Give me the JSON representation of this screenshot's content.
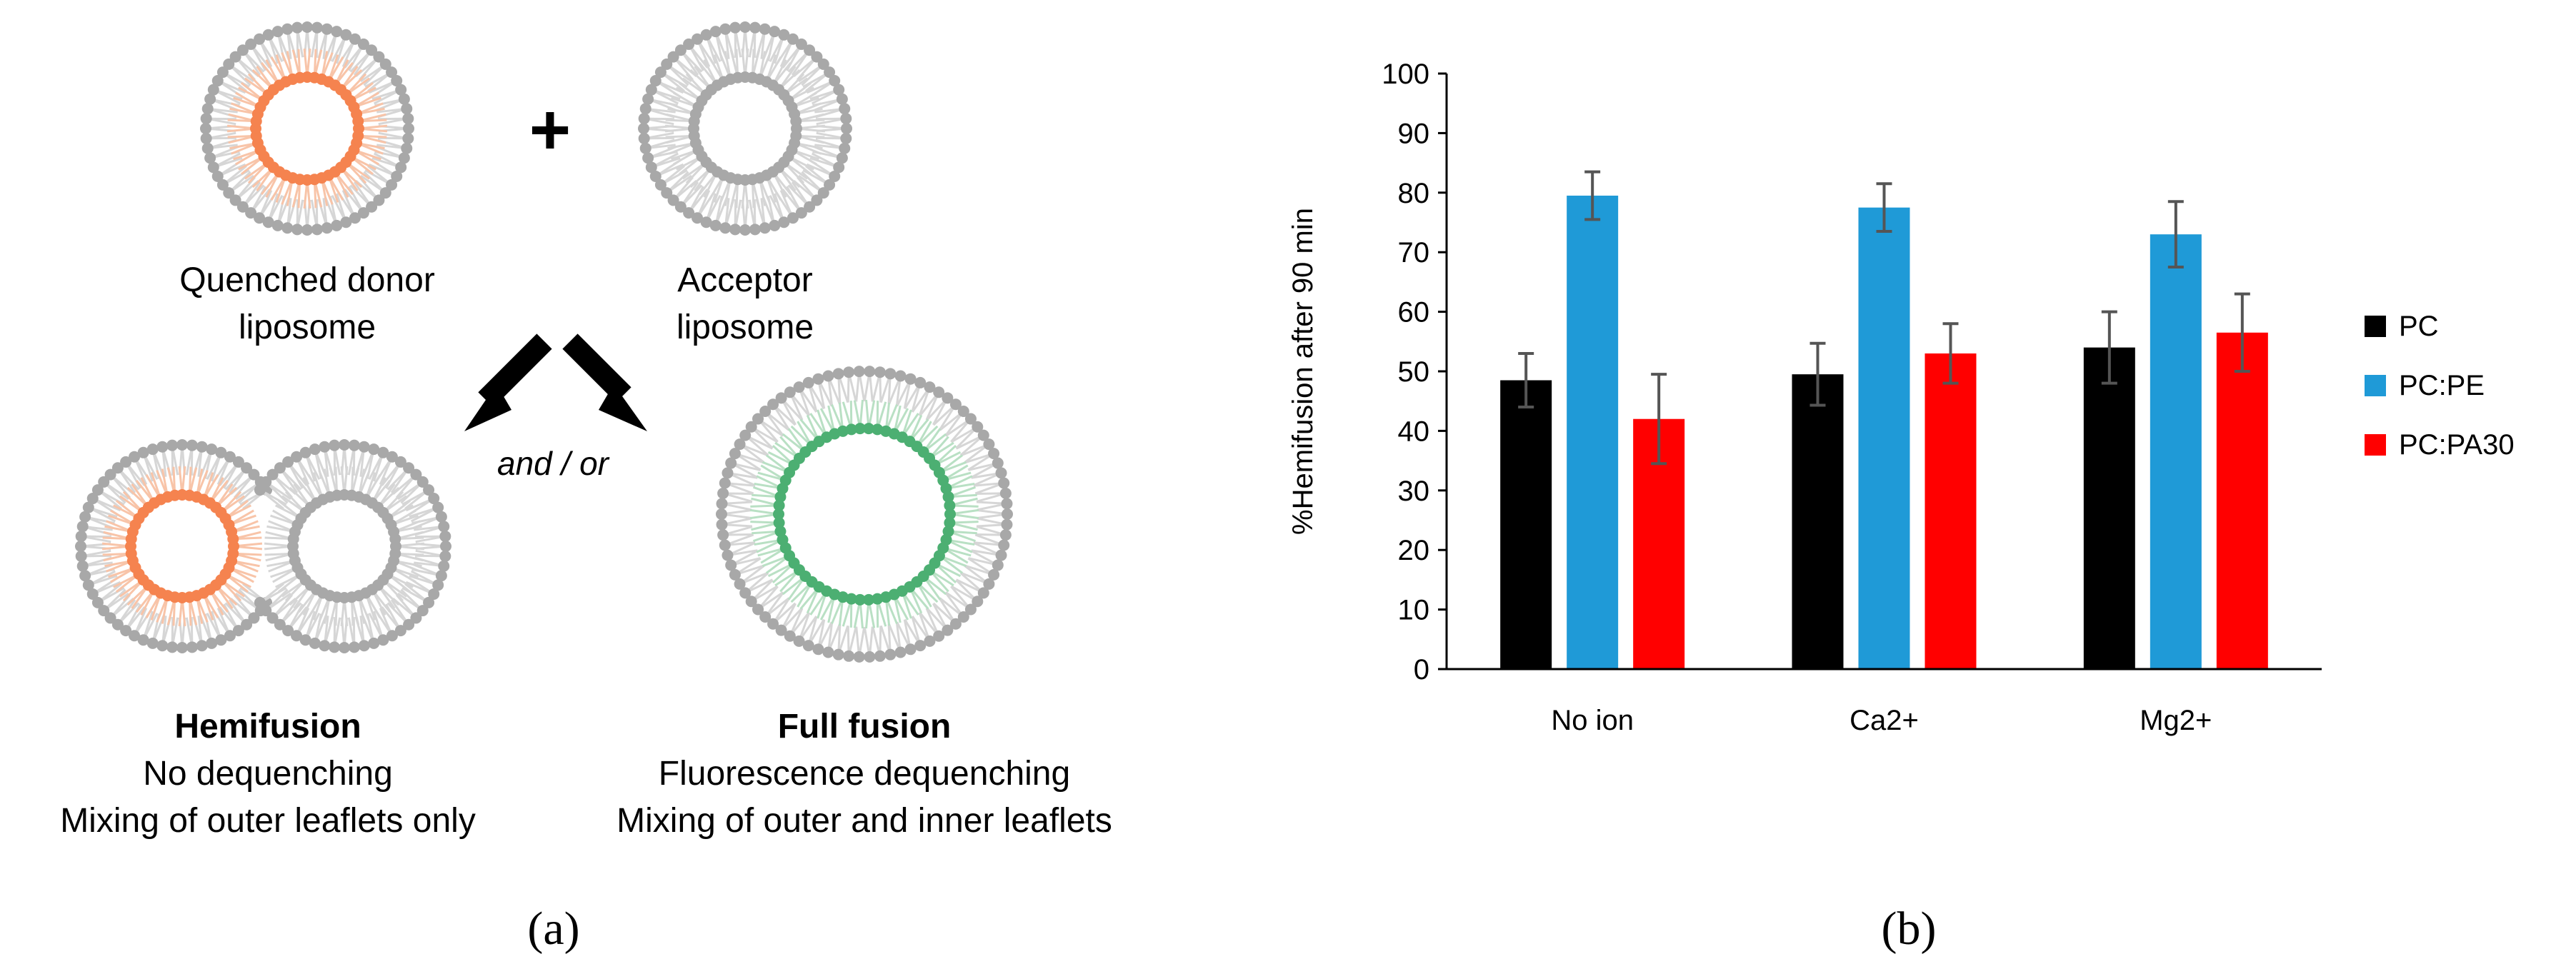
{
  "panel_a": {
    "plus_sign": "+",
    "donor_label": [
      "Quenched donor",
      "liposome"
    ],
    "acceptor_label": [
      "Acceptor",
      "liposome"
    ],
    "and_or": "and / or",
    "hemifusion": {
      "title": "Hemifusion",
      "lines": [
        "No dequenching",
        "Mixing of outer leaflets only"
      ]
    },
    "full_fusion": {
      "title": "Full fusion",
      "lines": [
        "Fluorescence dequenching",
        "Mixing of outer and inner leaflets"
      ]
    },
    "caption": "(a)",
    "colors": {
      "outer_head": "#a8a8a8",
      "tail": "#d6d6d6",
      "donor_inner": "#f5834f",
      "donor_tail": "#f8c4a8",
      "fused_inner": "#4caf72",
      "fused_tail": "#b9e0c4",
      "arrow": "#000000"
    }
  },
  "panel_b": {
    "caption": "(b)"
  },
  "chart_data": {
    "type": "bar",
    "categories": [
      "No ion",
      "Ca2+",
      "Mg2+"
    ],
    "series": [
      {
        "name": "PC",
        "color": "#000000",
        "values": [
          48.5,
          49.5,
          54
        ],
        "errors": [
          4.5,
          5.2,
          6
        ]
      },
      {
        "name": "PC:PE",
        "color": "#1f9ad7",
        "values": [
          79.5,
          77.5,
          73
        ],
        "errors": [
          4,
          4,
          5.5
        ]
      },
      {
        "name": "PC:PA30",
        "color": "#ff0000",
        "values": [
          42,
          53,
          56.5
        ],
        "errors": [
          7.5,
          5,
          6.5
        ]
      }
    ],
    "ylabel": "%Hemifusion after 90 min",
    "xlabel": "",
    "ylim": [
      0,
      100
    ],
    "yticks": [
      0,
      10,
      20,
      30,
      40,
      50,
      60,
      70,
      80,
      90,
      100
    ],
    "grid": false,
    "legend_position": "right"
  }
}
